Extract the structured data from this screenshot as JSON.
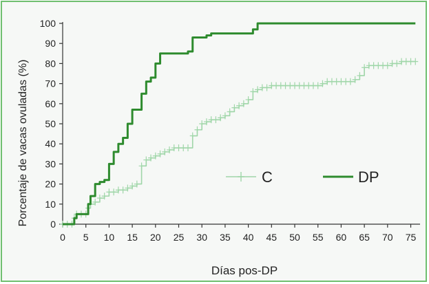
{
  "chart_data": {
    "type": "line",
    "title": "",
    "xlabel": "Días pos-DP",
    "ylabel": "Porcentaje de vacas ovuladas (%)",
    "xlim": [
      0,
      77
    ],
    "ylim": [
      0,
      100
    ],
    "xticks": [
      0,
      5,
      10,
      15,
      20,
      25,
      30,
      35,
      40,
      45,
      50,
      55,
      60,
      65,
      70,
      75
    ],
    "yticks": [
      0,
      10,
      20,
      30,
      40,
      50,
      60,
      70,
      80,
      90,
      100
    ],
    "grid": false,
    "legend_position": "center-right",
    "series": [
      {
        "name": "C",
        "color": "#9fd6a8",
        "marker": "plus",
        "points": [
          [
            0,
            0
          ],
          [
            1,
            0
          ],
          [
            2,
            0
          ],
          [
            2.5,
            3
          ],
          [
            3,
            5
          ],
          [
            4,
            5
          ],
          [
            5,
            5
          ],
          [
            5.5,
            8
          ],
          [
            6,
            10
          ],
          [
            7,
            11
          ],
          [
            8,
            13
          ],
          [
            9,
            14
          ],
          [
            10,
            16
          ],
          [
            11,
            16
          ],
          [
            12,
            17
          ],
          [
            13,
            17
          ],
          [
            14,
            18
          ],
          [
            15,
            19
          ],
          [
            16,
            20
          ],
          [
            17,
            29
          ],
          [
            18,
            32
          ],
          [
            19,
            33
          ],
          [
            20,
            34
          ],
          [
            21,
            35
          ],
          [
            22,
            36
          ],
          [
            23,
            37
          ],
          [
            24,
            38
          ],
          [
            25,
            38
          ],
          [
            26,
            38
          ],
          [
            27,
            38
          ],
          [
            28,
            44
          ],
          [
            29,
            47
          ],
          [
            30,
            50
          ],
          [
            31,
            51
          ],
          [
            32,
            52
          ],
          [
            33,
            52
          ],
          [
            34,
            53
          ],
          [
            35,
            54
          ],
          [
            36,
            56
          ],
          [
            37,
            58
          ],
          [
            38,
            59
          ],
          [
            39,
            60
          ],
          [
            40,
            62
          ],
          [
            41,
            66
          ],
          [
            42,
            67
          ],
          [
            43,
            68
          ],
          [
            44,
            68
          ],
          [
            45,
            69
          ],
          [
            46,
            69
          ],
          [
            47,
            69
          ],
          [
            48,
            69
          ],
          [
            49,
            69
          ],
          [
            50,
            69
          ],
          [
            51,
            69
          ],
          [
            52,
            69
          ],
          [
            53,
            69
          ],
          [
            54,
            69
          ],
          [
            55,
            69
          ],
          [
            56,
            70
          ],
          [
            57,
            71
          ],
          [
            58,
            71
          ],
          [
            59,
            71
          ],
          [
            60,
            71
          ],
          [
            61,
            71
          ],
          [
            62,
            71
          ],
          [
            63,
            72
          ],
          [
            64,
            74
          ],
          [
            65,
            78
          ],
          [
            66,
            79
          ],
          [
            67,
            79
          ],
          [
            68,
            79
          ],
          [
            69,
            79
          ],
          [
            70,
            79
          ],
          [
            71,
            80
          ],
          [
            72,
            80
          ],
          [
            73,
            81
          ],
          [
            74,
            81
          ],
          [
            75,
            81
          ],
          [
            76,
            81
          ]
        ]
      },
      {
        "name": "DP",
        "color": "#2e8b2e",
        "marker": "none",
        "points": [
          [
            0,
            0
          ],
          [
            1,
            0
          ],
          [
            2,
            0
          ],
          [
            2.5,
            3
          ],
          [
            3,
            5
          ],
          [
            5,
            5
          ],
          [
            5.5,
            10
          ],
          [
            6,
            14
          ],
          [
            7,
            20
          ],
          [
            8,
            21
          ],
          [
            9,
            22
          ],
          [
            10,
            30
          ],
          [
            11,
            36
          ],
          [
            12,
            40
          ],
          [
            13,
            43
          ],
          [
            14,
            50
          ],
          [
            15,
            57
          ],
          [
            16,
            57
          ],
          [
            17,
            65
          ],
          [
            18,
            71
          ],
          [
            19,
            73
          ],
          [
            20,
            80
          ],
          [
            21,
            85
          ],
          [
            25,
            85
          ],
          [
            27,
            86
          ],
          [
            28,
            93
          ],
          [
            30,
            93
          ],
          [
            31,
            94
          ],
          [
            32,
            95
          ],
          [
            40,
            95
          ],
          [
            41,
            97
          ],
          [
            42,
            100
          ],
          [
            76,
            100
          ]
        ]
      }
    ]
  }
}
